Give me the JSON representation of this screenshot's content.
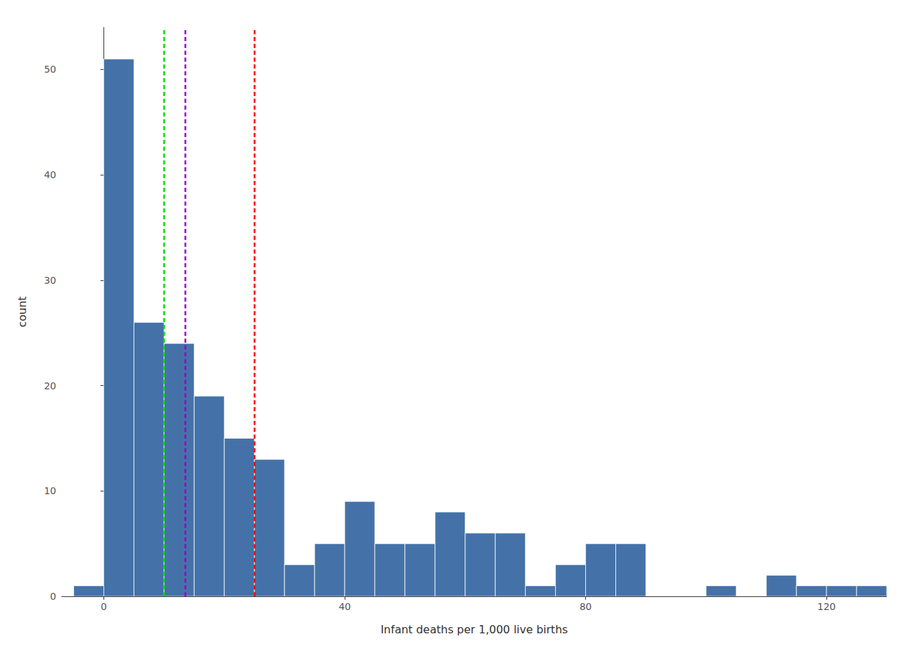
{
  "chart_data": {
    "type": "histogram",
    "xlabel": "Infant deaths per 1,000 live births",
    "ylabel": "count",
    "bins": [
      -5,
      0,
      5,
      10,
      15,
      20,
      25,
      30,
      35,
      40,
      45,
      50,
      55,
      60,
      65,
      70,
      75,
      80,
      85,
      90,
      95,
      100,
      105,
      110,
      115,
      120,
      125,
      130
    ],
    "values": [
      1,
      51,
      26,
      24,
      19,
      15,
      13,
      3,
      5,
      9,
      5,
      5,
      8,
      6,
      6,
      1,
      3,
      5,
      5,
      0,
      0,
      1,
      0,
      2,
      1,
      1,
      1
    ],
    "color": "#4472a8",
    "vlines": [
      {
        "x": 10.0,
        "color": "#00DD00",
        "line_style": "dashed"
      },
      {
        "x": 13.5,
        "color": "#9900CC",
        "line_style": "dashed"
      },
      {
        "x": 25.0,
        "color": "#FF0000",
        "line_style": "dashed"
      }
    ],
    "xlim": [
      -7,
      130
    ],
    "ylim": [
      0,
      54
    ],
    "xticks": [
      0,
      40,
      80,
      120
    ],
    "yticks": [
      0,
      10,
      20,
      30,
      40,
      50
    ],
    "grid": false
  }
}
